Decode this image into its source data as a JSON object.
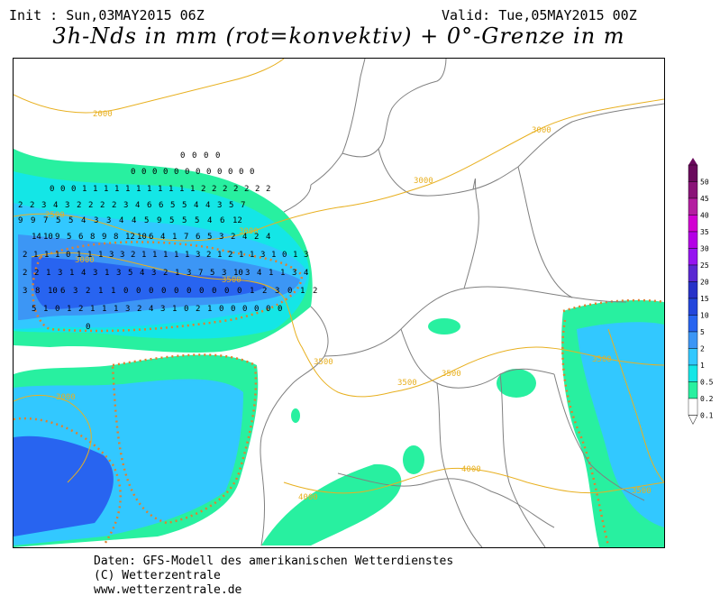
{
  "header": {
    "init": "Init : Sun,03MAY2015 06Z",
    "valid": "Valid: Tue,05MAY2015 00Z",
    "title": "3h-Nds in mm (rot=konvektiv) + 0°-Grenze in m"
  },
  "footer": {
    "line1": "Daten: GFS-Modell des amerikanischen Wetterdienstes",
    "line2": "(C) Wetterzentrale",
    "line3": "www.wetterzentrale.de"
  },
  "legend": {
    "labels": [
      "50",
      "45",
      "40",
      "35",
      "30",
      "25",
      "20",
      "15",
      "10",
      "5",
      "2",
      "1",
      "0.5",
      "0.2",
      "0.1"
    ],
    "colors": [
      "#6a0a5c",
      "#8a1478",
      "#b41ea0",
      "#d200d2",
      "#b400e6",
      "#9614f0",
      "#5a28d2",
      "#2832c8",
      "#2346dc",
      "#2864f0",
      "#3c96f5",
      "#32c8ff",
      "#14e6e6",
      "#28f0a0",
      "#ffffff"
    ]
  },
  "isolines": {
    "labels": [
      "2000",
      "2500",
      "3000",
      "3000",
      "3000",
      "3000",
      "3500",
      "3500",
      "3500",
      "3500",
      "3500",
      "3000",
      "4000",
      "4000",
      "3500"
    ]
  },
  "precip": {
    "values": [
      "0",
      "0",
      "0",
      "0",
      "0",
      "0",
      "0",
      "0",
      "0",
      "0",
      "0",
      "0",
      "0",
      "0",
      "0",
      "0",
      "0",
      "0",
      "0",
      "1",
      "1",
      "1",
      "1",
      "1",
      "1",
      "1",
      "1",
      "1",
      "1",
      "1",
      "2",
      "2",
      "2",
      "2",
      "2",
      "2",
      "2",
      "2",
      "2",
      "3",
      "4",
      "3",
      "2",
      "2",
      "2",
      "2",
      "3",
      "4",
      "6",
      "6",
      "5",
      "5",
      "4",
      "4",
      "3",
      "5",
      "7",
      "9",
      "9",
      "7",
      "5",
      "5",
      "4",
      "3",
      "3",
      "4",
      "4",
      "5",
      "9",
      "5",
      "5",
      "5",
      "4",
      "6",
      "12",
      "14",
      "10",
      "9",
      "5",
      "6",
      "8",
      "9",
      "8",
      "12",
      "10",
      "6",
      "4",
      "1",
      "7",
      "6",
      "5",
      "3",
      "2",
      "4",
      "2",
      "4",
      "2",
      "1",
      "1",
      "1",
      "0",
      "1",
      "1",
      "1",
      "3",
      "3",
      "2",
      "1",
      "1",
      "1",
      "1",
      "1",
      "3",
      "2",
      "1",
      "2",
      "1",
      "1",
      "3",
      "1",
      "0",
      "1",
      "3",
      "2",
      "2",
      "1",
      "3",
      "1",
      "4",
      "3",
      "1",
      "3",
      "5",
      "4",
      "3",
      "2",
      "1",
      "3",
      "7",
      "5",
      "3",
      "10",
      "3",
      "4",
      "1",
      "1",
      "3",
      "4",
      "3",
      "8",
      "10",
      "6",
      "3",
      "2",
      "1",
      "1",
      "0",
      "0",
      "0",
      "0",
      "0",
      "0",
      "0",
      "0",
      "0",
      "0",
      "1",
      "2",
      "3",
      "0",
      "1",
      "2",
      "5",
      "1",
      "0",
      "1",
      "2",
      "1",
      "1",
      "1",
      "3",
      "2",
      "4",
      "3",
      "1",
      "0",
      "2",
      "1",
      "0",
      "0",
      "0",
      "0",
      "0",
      "0",
      "0"
    ]
  }
}
